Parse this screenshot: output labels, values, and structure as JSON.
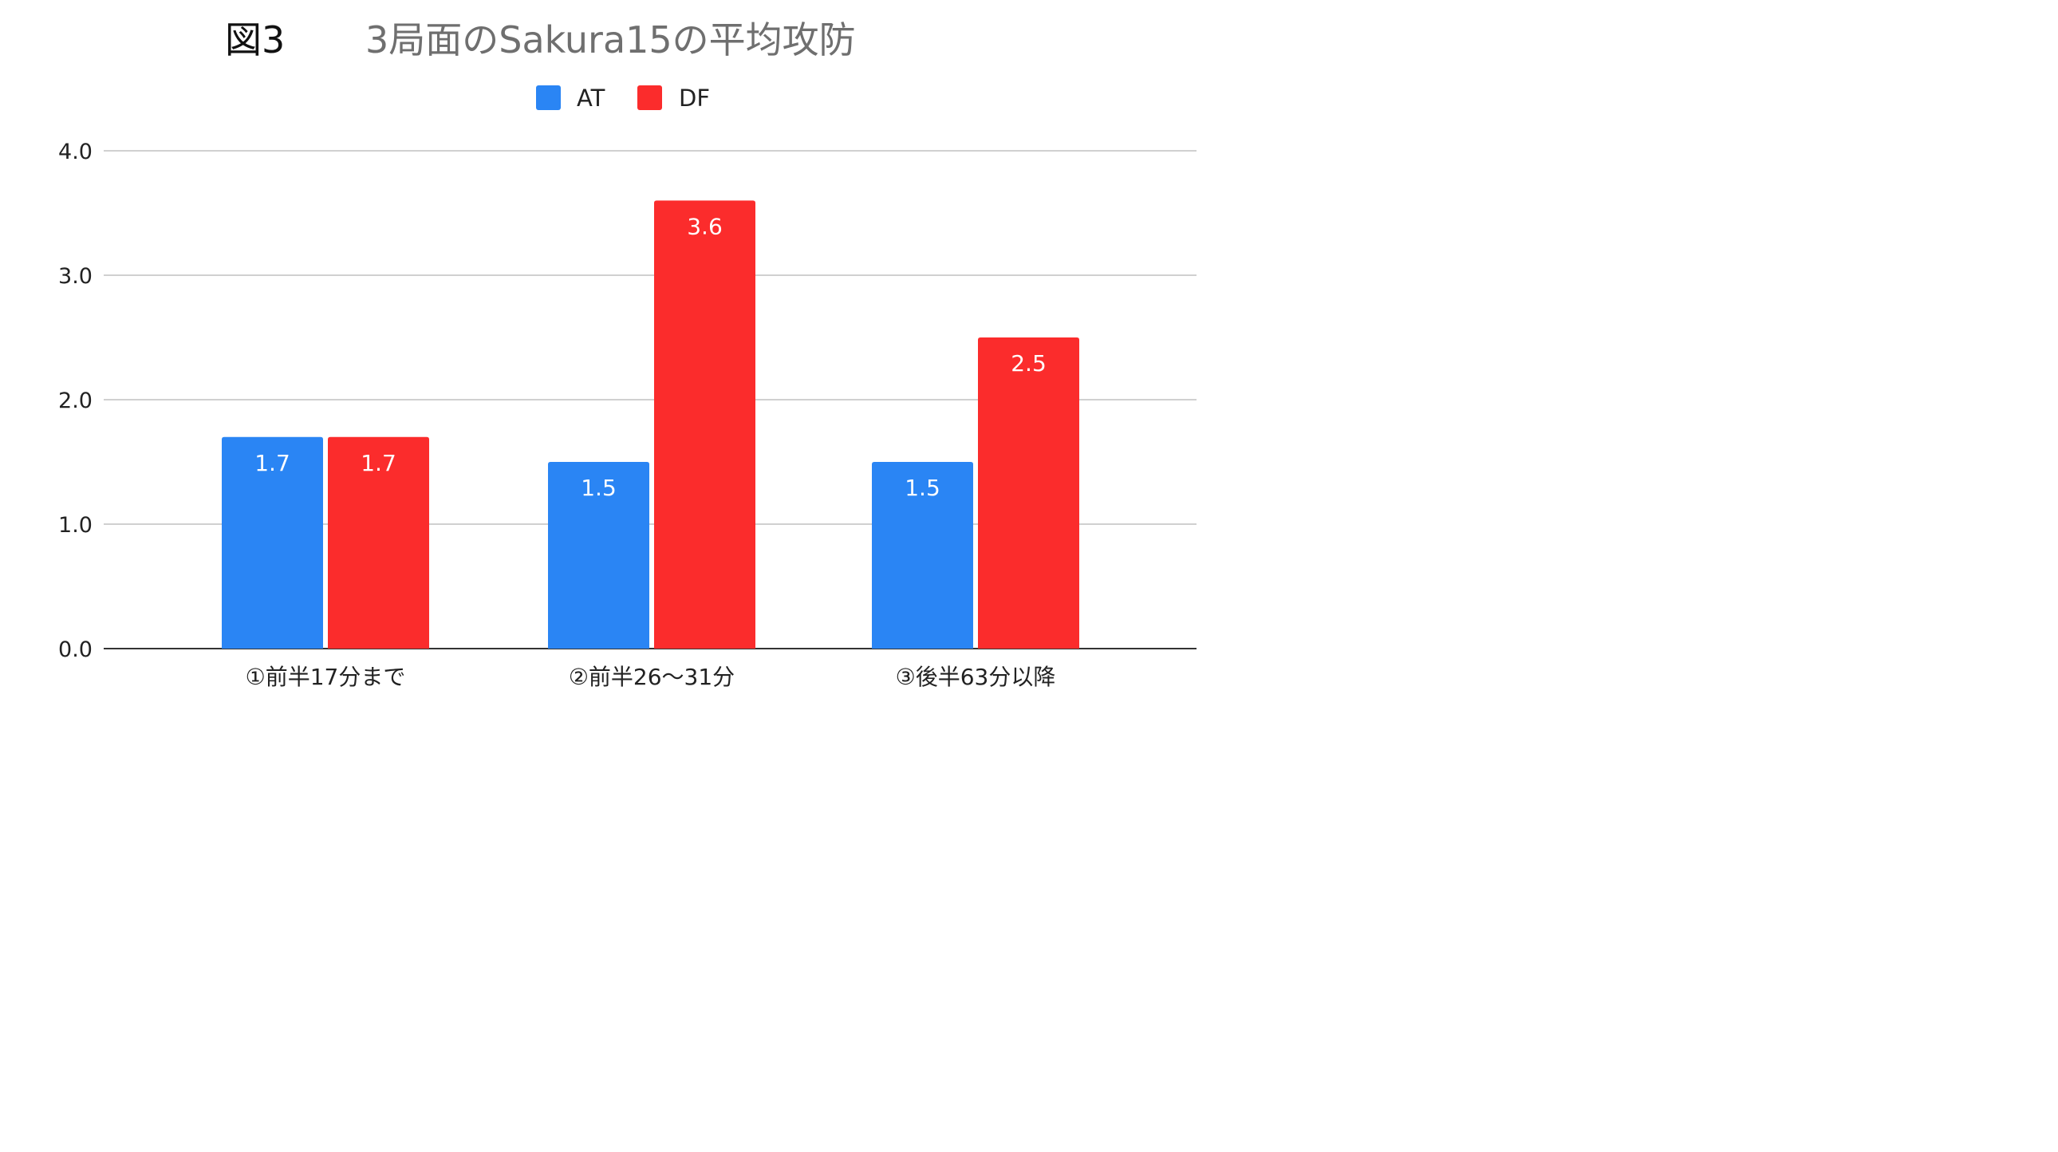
{
  "title": {
    "label": "図3",
    "main": "3局面のSakura15の平均攻防"
  },
  "colors": {
    "AT": "#2a85f4",
    "DF": "#fb2c2c",
    "grid": "#d0d0d0",
    "axis": "#333333",
    "tick_text": "#222222",
    "data_label": "#ffffff"
  },
  "chart_data": {
    "type": "bar",
    "categories": [
      "①前半17分まで",
      "②前半26〜31分",
      "③後半63分以降"
    ],
    "series": [
      {
        "name": "AT",
        "values": [
          1.7,
          1.5,
          1.5
        ]
      },
      {
        "name": "DF",
        "values": [
          1.7,
          3.6,
          2.5
        ]
      }
    ],
    "ylim": [
      0,
      4
    ],
    "yticks": [
      "0.0",
      "1.0",
      "2.0",
      "3.0",
      "4.0"
    ],
    "grid": true,
    "legend_position": "top-center",
    "xlabel": "",
    "ylabel": ""
  }
}
